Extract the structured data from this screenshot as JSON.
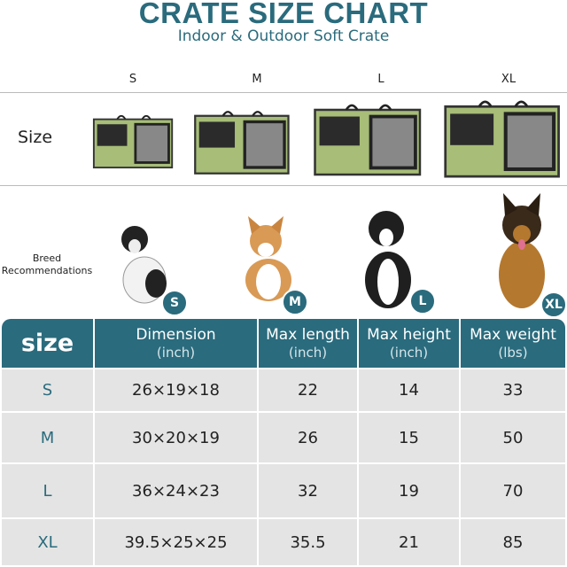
{
  "header": {
    "title": "CRATE SIZE CHART",
    "subtitle": "Indoor & Outdoor Soft Crate"
  },
  "columns": [
    "S",
    "M",
    "L",
    "XL"
  ],
  "row_labels": {
    "size": "Size",
    "breed": "Breed",
    "breed2": "Recommendations"
  },
  "badges": [
    "S",
    "M",
    "L",
    "XL"
  ],
  "colors": {
    "brand": "#2a6b7d",
    "crate_green": "#a7bd78",
    "row_bg": "#e4e4e4"
  },
  "table": {
    "headers": [
      {
        "label": "size",
        "unit": ""
      },
      {
        "label": "Dimension",
        "unit": "(inch)"
      },
      {
        "label": "Max length",
        "unit": "(inch)"
      },
      {
        "label": "Max height",
        "unit": "(inch)"
      },
      {
        "label": "Max weight",
        "unit": "(lbs)"
      }
    ],
    "rows": [
      [
        "S",
        "26×19×18",
        "22",
        "14",
        "33"
      ],
      [
        "M",
        "30×20×19",
        "26",
        "15",
        "50"
      ],
      [
        "L",
        "36×24×23",
        "32",
        "19",
        "70"
      ],
      [
        "XL",
        "39.5×25×25",
        "35.5",
        "21",
        "85"
      ]
    ]
  }
}
